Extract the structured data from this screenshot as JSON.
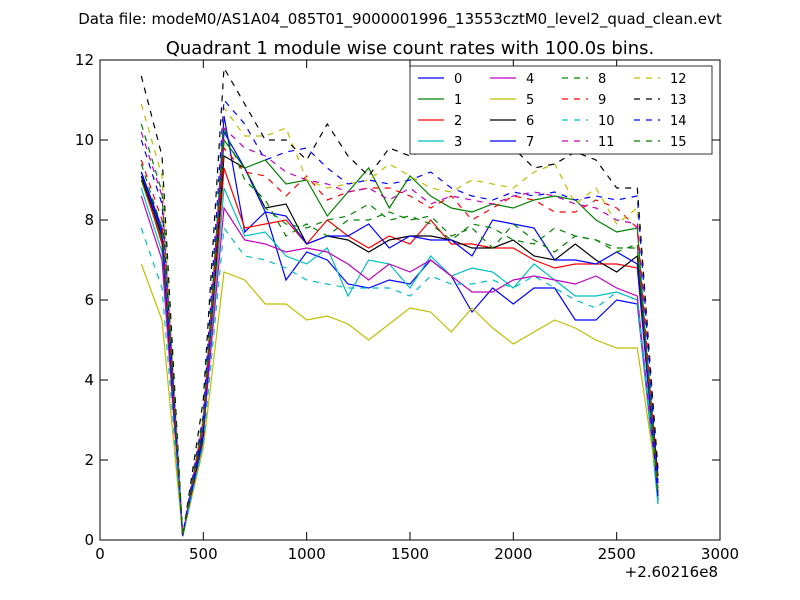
{
  "suptitle": "Data file: modeM0/AS1A04_085T01_9000001996_13553cztM0_level2_quad_clean.evt",
  "chart_data": {
    "type": "line",
    "title": "Quadrant 1 module wise count rates with 100.0s bins.",
    "xlabel": "",
    "ylabel": "",
    "x_offset_label": "+2.60216e8",
    "xlim": [
      0,
      3000
    ],
    "ylim": [
      0,
      12
    ],
    "x_ticks": [
      0,
      500,
      1000,
      1500,
      2000,
      2500,
      3000
    ],
    "y_ticks": [
      0,
      2,
      4,
      6,
      8,
      10,
      12
    ],
    "grid": false,
    "legend_position": "top-right",
    "legend_columns": 4,
    "x": [
      200,
      300,
      400,
      500,
      600,
      700,
      800,
      900,
      1000,
      1100,
      1200,
      1300,
      1400,
      1500,
      1600,
      1700,
      1800,
      1900,
      2000,
      2100,
      2200,
      2300,
      2400,
      2500,
      2600,
      2700
    ],
    "series": [
      {
        "name": "0",
        "color": "#0000ff",
        "dash": "solid",
        "values": [
          9.2,
          7.8,
          0.1,
          2.5,
          10.6,
          7.7,
          8.2,
          6.5,
          7.2,
          7.0,
          6.4,
          6.3,
          6.5,
          6.4,
          7.0,
          6.6,
          5.7,
          6.3,
          5.9,
          6.3,
          6.3,
          5.5,
          5.5,
          6.0,
          5.9,
          1.0
        ]
      },
      {
        "name": "1",
        "color": "#008000",
        "dash": "solid",
        "values": [
          9.0,
          7.5,
          0.1,
          2.5,
          10.0,
          9.3,
          9.5,
          8.9,
          9.0,
          8.1,
          8.7,
          9.3,
          8.3,
          9.1,
          8.6,
          8.3,
          8.2,
          8.4,
          8.3,
          8.5,
          8.6,
          8.5,
          8.0,
          7.7,
          7.8,
          0.9
        ]
      },
      {
        "name": "2",
        "color": "#ff0000",
        "dash": "solid",
        "values": [
          9.1,
          7.4,
          0.1,
          2.6,
          9.3,
          7.8,
          7.9,
          8.0,
          7.4,
          8.0,
          7.6,
          7.3,
          7.6,
          7.4,
          8.0,
          7.4,
          7.4,
          7.3,
          7.3,
          7.0,
          6.8,
          6.9,
          6.9,
          6.9,
          6.8,
          1.2
        ]
      },
      {
        "name": "3",
        "color": "#00bfbf",
        "dash": "solid",
        "values": [
          8.8,
          7.2,
          0.1,
          2.7,
          8.8,
          7.6,
          7.7,
          7.1,
          6.9,
          7.3,
          6.1,
          7.0,
          6.9,
          6.3,
          7.1,
          6.6,
          6.8,
          6.7,
          6.3,
          6.9,
          6.5,
          6.1,
          6.1,
          6.2,
          6.0,
          0.9
        ]
      },
      {
        "name": "4",
        "color": "#bf00bf",
        "dash": "solid",
        "values": [
          8.6,
          7.0,
          0.1,
          2.7,
          8.3,
          7.5,
          7.4,
          7.2,
          7.3,
          7.2,
          6.9,
          6.5,
          6.9,
          6.7,
          7.0,
          6.6,
          6.2,
          6.2,
          6.5,
          6.6,
          6.5,
          6.4,
          6.6,
          6.3,
          6.1,
          1.1
        ]
      },
      {
        "name": "5",
        "color": "#bfbf00",
        "dash": "solid",
        "values": [
          6.9,
          5.5,
          0.1,
          2.3,
          6.7,
          6.5,
          5.9,
          5.9,
          5.5,
          5.6,
          5.4,
          5.0,
          5.4,
          5.8,
          5.7,
          5.2,
          5.8,
          5.3,
          4.9,
          5.2,
          5.5,
          5.3,
          5.0,
          4.8,
          4.8,
          1.3
        ]
      },
      {
        "name": "6",
        "color": "#000000",
        "dash": "solid",
        "values": [
          9.1,
          7.6,
          0.1,
          2.8,
          9.6,
          9.3,
          8.3,
          8.4,
          7.4,
          7.6,
          7.5,
          7.2,
          7.5,
          7.6,
          7.6,
          7.5,
          7.3,
          7.3,
          7.5,
          7.1,
          7.0,
          7.4,
          7.0,
          6.7,
          7.1,
          1.6
        ]
      },
      {
        "name": "7",
        "color": "#0000ff",
        "dash": "solid",
        "values": [
          9.2,
          7.7,
          0.1,
          2.6,
          10.2,
          9.3,
          8.2,
          8.1,
          7.4,
          7.6,
          7.6,
          7.9,
          7.3,
          7.6,
          7.5,
          7.5,
          7.1,
          8.0,
          7.9,
          7.8,
          7.0,
          7.0,
          6.9,
          7.2,
          6.9,
          1.1
        ]
      },
      {
        "name": "8",
        "color": "#008000",
        "dash": "dashed",
        "values": [
          9.4,
          7.8,
          0.1,
          2.9,
          10.0,
          9.3,
          8.3,
          7.9,
          7.8,
          8.0,
          8.1,
          8.4,
          8.0,
          8.1,
          7.9,
          7.5,
          7.9,
          7.8,
          7.5,
          7.4,
          7.8,
          7.6,
          7.5,
          7.3,
          7.3,
          1.5
        ]
      },
      {
        "name": "9",
        "color": "#ff0000",
        "dash": "dashed",
        "values": [
          9.5,
          8.0,
          0.1,
          2.8,
          9.8,
          9.2,
          9.1,
          8.6,
          9.1,
          8.5,
          8.7,
          8.8,
          8.8,
          8.6,
          8.3,
          8.6,
          8.0,
          8.3,
          8.6,
          8.5,
          8.2,
          8.2,
          8.5,
          8.3,
          7.8,
          1.3
        ]
      },
      {
        "name": "10",
        "color": "#00bfbf",
        "dash": "dashed",
        "values": [
          7.8,
          6.3,
          0.1,
          2.4,
          7.8,
          7.1,
          7.0,
          6.8,
          6.5,
          6.4,
          6.3,
          6.3,
          6.3,
          6.1,
          6.6,
          6.4,
          6.4,
          6.5,
          6.3,
          6.6,
          6.3,
          6.0,
          5.8,
          6.2,
          6.0,
          1.2
        ]
      },
      {
        "name": "11",
        "color": "#bf00bf",
        "dash": "dashed",
        "values": [
          10.2,
          8.6,
          0.1,
          3.0,
          10.3,
          9.8,
          9.6,
          9.2,
          9.0,
          8.9,
          8.7,
          8.8,
          8.5,
          8.8,
          8.4,
          8.6,
          8.5,
          8.4,
          8.6,
          8.7,
          8.6,
          8.4,
          8.3,
          8.0,
          7.9,
          1.8
        ]
      },
      {
        "name": "12",
        "color": "#bfbf00",
        "dash": "dashed",
        "values": [
          10.9,
          9.1,
          0.1,
          3.2,
          10.8,
          10.1,
          10.1,
          10.3,
          9.0,
          8.8,
          8.9,
          9.0,
          9.4,
          9.1,
          8.8,
          8.7,
          9.0,
          8.9,
          8.8,
          9.2,
          9.4,
          8.4,
          8.8,
          7.9,
          8.3,
          1.9
        ]
      },
      {
        "name": "13",
        "color": "#000000",
        "dash": "dashed",
        "values": [
          11.6,
          9.6,
          0.1,
          3.5,
          11.8,
          10.9,
          10.0,
          10.0,
          9.5,
          10.4,
          9.6,
          9.1,
          9.8,
          9.6,
          9.8,
          9.7,
          9.7,
          9.7,
          9.8,
          9.3,
          9.4,
          9.7,
          9.5,
          8.8,
          8.8,
          1.7
        ]
      },
      {
        "name": "14",
        "color": "#0000ff",
        "dash": "dashed",
        "values": [
          10.0,
          8.4,
          0.1,
          3.1,
          11.0,
          10.4,
          9.5,
          9.7,
          9.8,
          9.3,
          8.9,
          9.0,
          8.9,
          9.0,
          9.2,
          8.8,
          8.6,
          8.5,
          8.7,
          8.6,
          8.7,
          8.5,
          8.6,
          8.5,
          8.6,
          1.4
        ]
      },
      {
        "name": "15",
        "color": "#008000",
        "dash": "dashed",
        "values": [
          10.4,
          8.7,
          0.1,
          3.0,
          10.3,
          9.0,
          8.5,
          7.6,
          7.9,
          7.6,
          8.0,
          8.0,
          8.2,
          8.0,
          8.1,
          7.6,
          7.8,
          7.3,
          7.9,
          7.5,
          7.2,
          7.6,
          7.5,
          7.2,
          7.4,
          1.1
        ]
      }
    ]
  }
}
